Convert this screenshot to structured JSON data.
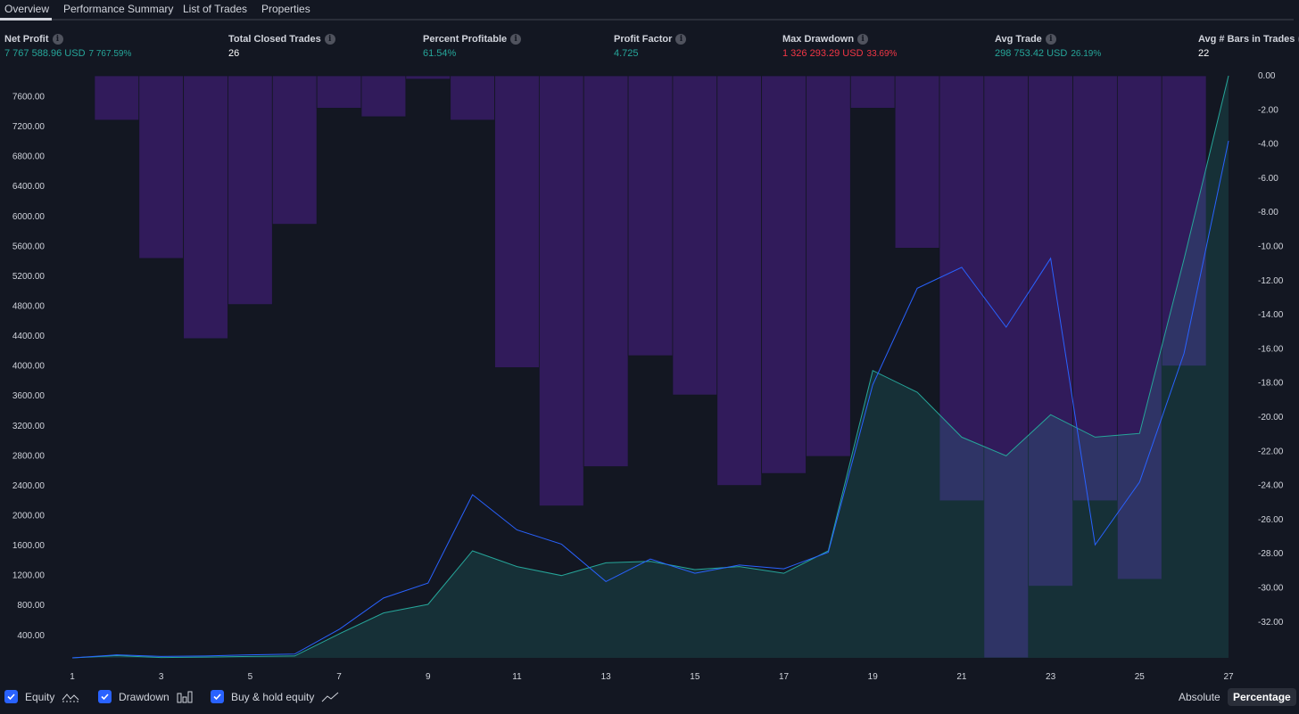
{
  "tabs": [
    {
      "label": "Overview",
      "active": true
    },
    {
      "label": "Performance Summary",
      "active": false
    },
    {
      "label": "List of Trades",
      "active": false
    },
    {
      "label": "Properties",
      "active": false
    }
  ],
  "stats": {
    "net_profit": {
      "label": "Net Profit",
      "value": "7 767 588.96 USD",
      "percent": "7 767.59%"
    },
    "total_closed_trades": {
      "label": "Total Closed Trades",
      "value": "26"
    },
    "percent_profitable": {
      "label": "Percent Profitable",
      "value": "61.54%"
    },
    "profit_factor": {
      "label": "Profit Factor",
      "value": "4.725"
    },
    "max_drawdown": {
      "label": "Max Drawdown",
      "value": "1 326 293.29 USD",
      "percent": "33.69%"
    },
    "avg_trade": {
      "label": "Avg Trade",
      "value": "298 753.42 USD",
      "percent": "26.19%"
    },
    "avg_bars": {
      "label": "Avg # Bars in Trades",
      "value": "22"
    }
  },
  "legend": {
    "equity": "Equity",
    "drawdown": "Drawdown",
    "buy_hold": "Buy & hold equity",
    "absolute": "Absolute",
    "percentage": "Percentage"
  },
  "colors": {
    "background": "#131722",
    "equity_line": "#26a69a",
    "equity_fill": "#1a3a3a",
    "buy_hold_line": "#2962ff",
    "drawdown_bar": "#311b5b",
    "profit_green": "#26a69a",
    "loss_red": "#f23645",
    "checkbox_blue": "#2962ff"
  },
  "chart_data": {
    "type": "line",
    "x": [
      1,
      2,
      3,
      4,
      5,
      6,
      7,
      8,
      9,
      10,
      11,
      12,
      13,
      14,
      15,
      16,
      17,
      18,
      19,
      20,
      21,
      22,
      23,
      24,
      25,
      26,
      27
    ],
    "x_tick_labels": [
      "1",
      "3",
      "5",
      "7",
      "9",
      "11",
      "13",
      "15",
      "17",
      "19",
      "21",
      "23",
      "25",
      "27"
    ],
    "ylim_left": [
      100,
      7880
    ],
    "ylim_right": [
      -34.1,
      0
    ],
    "left_tick_labels": [
      "7600.00",
      "7200.00",
      "6800.00",
      "6400.00",
      "6000.00",
      "5600.00",
      "5200.00",
      "4800.00",
      "4400.00",
      "4000.00",
      "3600.00",
      "3200.00",
      "2800.00",
      "2400.00",
      "2000.00",
      "1600.00",
      "1200.00",
      "800.00",
      "400.00"
    ],
    "right_tick_labels": [
      "0.00",
      "-2.00",
      "-4.00",
      "-6.00",
      "-8.00",
      "-10.00",
      "-12.00",
      "-14.00",
      "-16.00",
      "-18.00",
      "-20.00",
      "-22.00",
      "-24.00",
      "-26.00",
      "-28.00",
      "-30.00",
      "-32.00"
    ],
    "series": [
      {
        "name": "Equity",
        "axis": "left",
        "values": [
          100,
          130,
          105,
          110,
          120,
          125,
          420,
          700,
          815,
          1530,
          1320,
          1200,
          1370,
          1390,
          1280,
          1320,
          1230,
          1530,
          3940,
          3650,
          3050,
          2800,
          3350,
          3050,
          3100,
          5430,
          7880
        ]
      },
      {
        "name": "Buy & hold equity",
        "axis": "left",
        "values": [
          100,
          140,
          120,
          125,
          140,
          150,
          480,
          900,
          1100,
          2280,
          1810,
          1620,
          1120,
          1420,
          1230,
          1340,
          1290,
          1510,
          3750,
          5040,
          5320,
          4520,
          5440,
          1610,
          2450,
          4170,
          7010
        ]
      },
      {
        "name": "Drawdown",
        "axis": "right",
        "type": "bar",
        "values": [
          0,
          -2.6,
          -10.7,
          -15.4,
          -13.4,
          -8.7,
          -1.9,
          -2.4,
          -0.2,
          -2.6,
          -17.1,
          -25.2,
          -22.9,
          -16.4,
          -18.7,
          -24.0,
          -23.3,
          -22.3,
          -1.9,
          -10.1,
          -24.9,
          -34.1,
          -29.9,
          -24.9,
          -29.5,
          -17.0,
          0
        ]
      }
    ]
  }
}
